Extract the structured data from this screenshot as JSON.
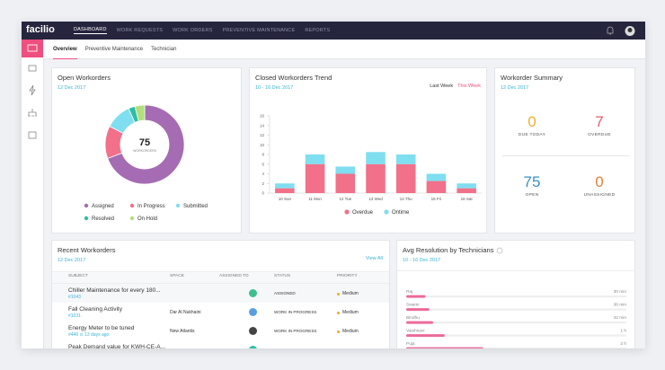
{
  "nav": {
    "logo": "facilio",
    "items": [
      "DASHBOARD",
      "WORK REQUESTS",
      "WORK ORDERS",
      "PREVENTIVE MAINTENANCE",
      "REPORTS"
    ]
  },
  "tabs": [
    "Overview",
    "Preventive Maintenance",
    "Technician"
  ],
  "chart_data": [
    {
      "type": "donut",
      "title": "Open Workorders",
      "subtitle": "12 Dec 2017",
      "center_value": 75,
      "center_label": "WORKORDERS",
      "categories": [
        "Assigned",
        "In Progress",
        "Submitted",
        "Resolved",
        "On Hold"
      ],
      "values": [
        52,
        10,
        8,
        2,
        3
      ],
      "colors": [
        "#a56cb3",
        "#f2708a",
        "#7fdef0",
        "#2bbfa4",
        "#b2df7c"
      ]
    },
    {
      "type": "stacked_bar",
      "title": "Closed Workorders Trend",
      "subtitle": "10 - 16 Dec 2017",
      "toggles": [
        "Last Week",
        "This Week"
      ],
      "categories": [
        "10 Sun",
        "11 Mon",
        "12 Tue",
        "13 Wed",
        "14 Thu",
        "15 Fri",
        "16 Sat"
      ],
      "series": [
        {
          "name": "Overdue",
          "color": "#f2708a",
          "values": [
            1,
            6,
            4,
            6,
            6,
            2.5,
            1
          ]
        },
        {
          "name": "Ontime",
          "color": "#7fdef0",
          "values": [
            1,
            2,
            1.5,
            2.5,
            2,
            1.5,
            1
          ]
        }
      ],
      "ylim": [
        0,
        16
      ],
      "yticks": [
        0,
        2,
        4,
        6,
        8,
        10,
        12,
        14,
        16
      ]
    },
    {
      "type": "hbar",
      "title": "Avg Resolution by Technicians",
      "subtitle": "10 - 16 Dec 2017",
      "categories": [
        "Raj",
        "Swami",
        "Bindhu",
        "Vaishnavi",
        "Puja"
      ],
      "values": [
        30,
        36,
        42,
        60,
        120
      ],
      "value_labels": [
        "30 min",
        "36 min",
        "42 min",
        "1 h",
        "2 h"
      ],
      "color": "#ec6a9a"
    }
  ],
  "summary": {
    "title": "Workorder Summary",
    "date": "12 Dec 2017",
    "items": [
      {
        "value": 0,
        "label": "DUE TODAY",
        "color": "#f3b02c"
      },
      {
        "value": 7,
        "label": "OVERDUE",
        "color": "#e35d6a"
      },
      {
        "value": 75,
        "label": "OPEN",
        "color": "#3a8fc6"
      },
      {
        "value": 0,
        "label": "UNASSIGNED",
        "color": "#e8813a"
      }
    ]
  },
  "recent_workorders": {
    "title": "Recent Workorders",
    "date": "12 Dec 2017",
    "action": "View All",
    "columns": [
      "SUBJECT",
      "SPACE",
      "ASSIGNED TO",
      "STATUS",
      "PRIORITY"
    ],
    "rows": [
      {
        "subject": "Chiller Maintenance for every 180...",
        "id": "#1043",
        "space": "",
        "status": "ASSIGNED",
        "priority": "Medium"
      },
      {
        "subject": "Fall Cleaning Activity",
        "id": "#1031",
        "space": "Dar Al Nukhaini",
        "status": "WORK IN PROGRESS",
        "priority": "Medium"
      },
      {
        "subject": "Energy Meter to be tuned",
        "id": "#446 ⊙ 13 days ago",
        "space": "New Atlantis",
        "status": "WORK IN PROGRESS",
        "priority": "Medium"
      },
      {
        "subject": "Peak Demand value for KWH-CE-A...",
        "id": "",
        "space": "",
        "status": "",
        "priority": ""
      }
    ]
  }
}
